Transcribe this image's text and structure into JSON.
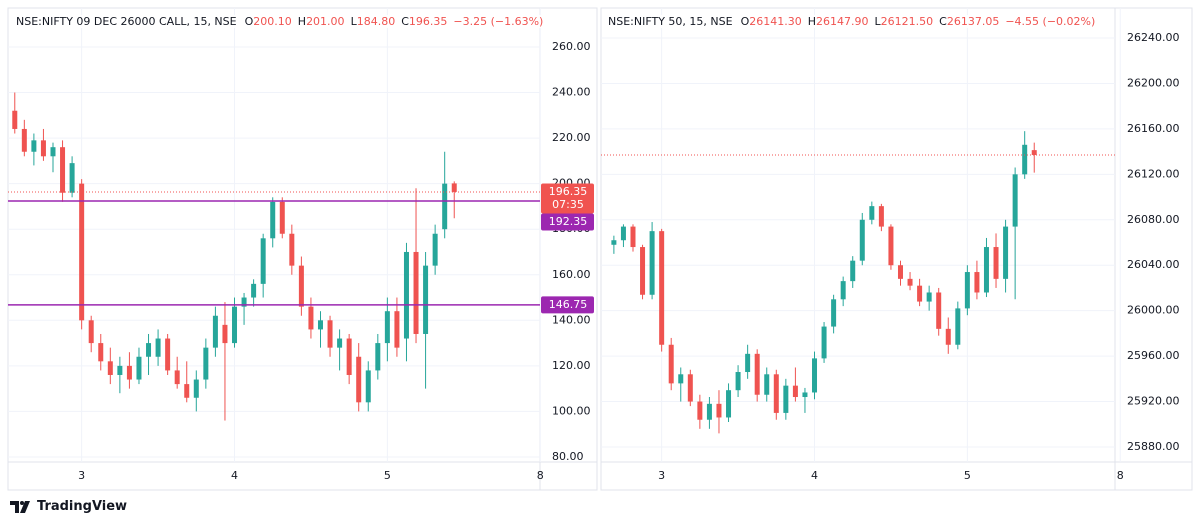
{
  "chart_data": [
    {
      "type": "candlestick",
      "title": "NSE:NIFTY 09 DEC 26000 CALL, 15, NSE",
      "legend": [
        {
          "label": "O",
          "value": "200.10"
        },
        {
          "label": "H",
          "value": "201.00"
        },
        {
          "label": "L",
          "value": "184.80"
        },
        {
          "label": "C",
          "value": "196.35"
        }
      ],
      "change": "−3.25 (−1.63%)",
      "up_color": "#26a69a",
      "down_color": "#ef5350",
      "ylim": [
        77.8,
        277.1
      ],
      "yticks": [
        {
          "value": 80,
          "label": "80.00"
        },
        {
          "value": 100,
          "label": "100.00"
        },
        {
          "value": 120,
          "label": "120.00"
        },
        {
          "value": 140,
          "label": "140.00"
        },
        {
          "value": 160,
          "label": "160.00"
        },
        {
          "value": 180,
          "label": "180.00"
        },
        {
          "value": 200,
          "label": "200.00"
        },
        {
          "value": 220,
          "label": "220.00"
        },
        {
          "value": 240,
          "label": "240.00"
        },
        {
          "value": 260,
          "label": "260.00"
        }
      ],
      "categories": [
        null,
        null,
        null,
        null,
        null,
        null,
        null,
        "3",
        null,
        null,
        null,
        null,
        null,
        null,
        null,
        null,
        null,
        null,
        null,
        null,
        null,
        null,
        null,
        "4",
        null,
        null,
        null,
        null,
        null,
        null,
        null,
        null,
        null,
        null,
        null,
        null,
        null,
        null,
        null,
        "5",
        null,
        null,
        null,
        null,
        null,
        null,
        null,
        null,
        null,
        null,
        null,
        null,
        null,
        null,
        null,
        "8"
      ],
      "ohlc": [
        [
          232,
          240,
          222,
          224
        ],
        [
          224,
          228,
          212,
          214
        ],
        [
          214,
          222,
          208,
          219
        ],
        [
          219,
          224,
          210,
          212
        ],
        [
          212,
          218,
          205,
          216
        ],
        [
          216,
          219,
          192,
          196
        ],
        [
          196,
          212,
          194,
          209
        ],
        [
          200,
          202,
          136,
          140
        ],
        [
          140,
          142,
          126,
          130
        ],
        [
          130,
          134,
          118,
          122
        ],
        [
          122,
          128,
          112,
          116
        ],
        [
          116,
          124,
          108,
          120
        ],
        [
          120,
          126,
          110,
          114
        ],
        [
          114,
          128,
          112,
          124
        ],
        [
          124,
          134,
          116,
          130
        ],
        [
          124,
          136,
          120,
          132
        ],
        [
          132,
          134,
          116,
          118
        ],
        [
          118,
          124,
          110,
          112
        ],
        [
          112,
          122,
          104,
          106
        ],
        [
          106,
          118,
          100,
          114
        ],
        [
          114,
          132,
          110,
          128
        ],
        [
          128,
          146,
          124,
          142
        ],
        [
          138,
          148,
          96,
          130
        ],
        [
          130,
          150,
          128,
          146
        ],
        [
          146,
          152,
          138,
          150
        ],
        [
          150,
          158,
          146,
          156
        ],
        [
          156,
          178,
          150,
          176
        ],
        [
          176,
          194,
          172,
          192
        ],
        [
          192,
          194,
          176,
          178
        ],
        [
          178,
          182,
          160,
          164
        ],
        [
          164,
          168,
          142,
          146
        ],
        [
          146,
          150,
          132,
          136
        ],
        [
          136,
          144,
          128,
          140
        ],
        [
          140,
          142,
          124,
          128
        ],
        [
          128,
          136,
          118,
          132
        ],
        [
          132,
          134,
          112,
          116
        ],
        [
          124,
          130,
          100,
          104
        ],
        [
          104,
          122,
          100,
          118
        ],
        [
          118,
          134,
          114,
          130
        ],
        [
          130,
          150,
          122,
          144
        ],
        [
          144,
          150,
          124,
          128
        ],
        [
          132,
          174,
          122,
          170
        ],
        [
          170,
          198,
          130,
          134
        ],
        [
          134,
          170,
          110,
          164
        ],
        [
          164,
          182,
          160,
          178
        ],
        [
          180,
          214,
          176,
          200
        ],
        [
          200.1,
          201.0,
          184.8,
          196.35
        ],
        null,
        null,
        null,
        null,
        null,
        null,
        null,
        null,
        null
      ],
      "price_lines": [
        {
          "value": 196.35,
          "style": "dotted",
          "color": "#f05350",
          "label": "196.35",
          "countdown": "07:35"
        },
        {
          "value": 192.35,
          "style": "solid",
          "color": "#9c27b0",
          "label": "192.35"
        },
        {
          "value": 146.75,
          "style": "solid",
          "color": "#9c27b0",
          "label": "146.75"
        }
      ],
      "grid": true
    },
    {
      "type": "candlestick",
      "title": "NSE:NIFTY 50, 15, NSE",
      "legend": [
        {
          "label": "O",
          "value": "26141.30"
        },
        {
          "label": "H",
          "value": "26147.90"
        },
        {
          "label": "L",
          "value": "26121.50"
        },
        {
          "label": "C",
          "value": "26137.05"
        }
      ],
      "change": "−4.55 (−0.02%)",
      "up_color": "#26a69a",
      "down_color": "#ef5350",
      "ylim": [
        25866.8,
        26266.4
      ],
      "yticks": [
        {
          "value": 25880,
          "label": "25880.00"
        },
        {
          "value": 25920,
          "label": "25920.00"
        },
        {
          "value": 25960,
          "label": "25960.00"
        },
        {
          "value": 26000,
          "label": "26000.00"
        },
        {
          "value": 26040,
          "label": "26040.00"
        },
        {
          "value": 26080,
          "label": "26080.00"
        },
        {
          "value": 26120,
          "label": "26120.00"
        },
        {
          "value": 26160,
          "label": "26160.00"
        },
        {
          "value": 26200,
          "label": "26200.00"
        },
        {
          "value": 26240,
          "label": "26240.00"
        }
      ],
      "categories": [
        null,
        null,
        null,
        null,
        null,
        null,
        null,
        "3",
        null,
        null,
        null,
        null,
        null,
        null,
        null,
        null,
        null,
        null,
        null,
        null,
        null,
        null,
        null,
        "4",
        null,
        null,
        null,
        null,
        null,
        null,
        null,
        null,
        null,
        null,
        null,
        null,
        null,
        null,
        null,
        "5",
        null,
        null,
        null,
        null,
        null,
        null,
        null,
        null,
        null,
        null,
        null,
        null,
        null,
        null,
        null,
        "8"
      ],
      "ohlc": [
        null,
        null,
        [
          26058,
          26066,
          26050,
          26062
        ],
        [
          26062,
          26076,
          26056,
          26074
        ],
        [
          26074,
          26076,
          26052,
          26056
        ],
        [
          26056,
          26058,
          26010,
          26014
        ],
        [
          26014,
          26078,
          26010,
          26070
        ],
        [
          26070,
          26072,
          25964,
          25970
        ],
        [
          25970,
          25976,
          25930,
          25936
        ],
        [
          25936,
          25950,
          25920,
          25944
        ],
        [
          25944,
          25948,
          25916,
          25920
        ],
        [
          25920,
          25926,
          25896,
          25904
        ],
        [
          25904,
          25924,
          25896,
          25918
        ],
        [
          25918,
          25930,
          25892,
          25906
        ],
        [
          25906,
          25936,
          25902,
          25930
        ],
        [
          25930,
          25952,
          25924,
          25946
        ],
        [
          25946,
          25970,
          25940,
          25962
        ],
        [
          25962,
          25966,
          25920,
          25926
        ],
        [
          25926,
          25950,
          25920,
          25944
        ],
        [
          25944,
          25948,
          25904,
          25910
        ],
        [
          25910,
          25940,
          25904,
          25934
        ],
        [
          25934,
          25950,
          25920,
          25924
        ],
        [
          25924,
          25932,
          25910,
          25928
        ],
        [
          25928,
          25964,
          25922,
          25958
        ],
        [
          25958,
          25990,
          25954,
          25986
        ],
        [
          25986,
          26014,
          25980,
          26010
        ],
        [
          26010,
          26030,
          26004,
          26026
        ],
        [
          26026,
          26048,
          26020,
          26044
        ],
        [
          26044,
          26086,
          26040,
          26080
        ],
        [
          26080,
          26096,
          26076,
          26092
        ],
        [
          26092,
          26094,
          26070,
          26074
        ],
        [
          26074,
          26076,
          26036,
          26040
        ],
        [
          26040,
          26044,
          26022,
          26028
        ],
        [
          26028,
          26034,
          26018,
          26022
        ],
        [
          26022,
          26028,
          26004,
          26008
        ],
        [
          26008,
          26022,
          26000,
          26016
        ],
        [
          26016,
          26020,
          25978,
          25984
        ],
        [
          25984,
          25994,
          25962,
          25970
        ],
        [
          25970,
          26008,
          25966,
          26002
        ],
        [
          26002,
          26040,
          25996,
          26034
        ],
        [
          26034,
          26044,
          26010,
          26016
        ],
        [
          26016,
          26064,
          26012,
          26056
        ],
        [
          26056,
          26068,
          26020,
          26028
        ],
        [
          26028,
          26080,
          26016,
          26074
        ],
        [
          26074,
          26126,
          26010,
          26120
        ],
        [
          26120,
          26158,
          26116,
          26146
        ],
        [
          26141.3,
          26147.9,
          26121.5,
          26137.05
        ],
        null,
        null,
        null,
        null,
        null,
        null,
        null,
        null,
        null
      ],
      "price_lines": [
        {
          "value": 26137.05,
          "style": "dotted",
          "color": "#f05350"
        }
      ],
      "grid": true
    }
  ],
  "footer": {
    "brand": "TradingView"
  }
}
